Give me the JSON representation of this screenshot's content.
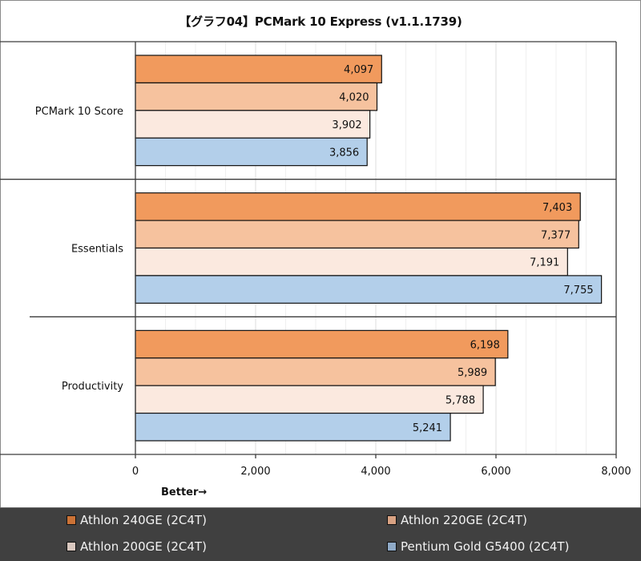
{
  "chart_data": {
    "type": "bar",
    "orientation": "horizontal",
    "title": "【グラフ04】PCMark 10 Express (v1.1.1739)",
    "categories": [
      "PCMark 10 Score",
      "Essentials",
      "Productivity"
    ],
    "series": [
      {
        "name": "Athlon 240GE (2C4T)",
        "values": [
          4097,
          7403,
          6198
        ],
        "value_labels": [
          "4,097",
          "7,403",
          "6,198"
        ],
        "color": "#F19A5D",
        "legend_color": "#CB7236"
      },
      {
        "name": "Athlon 220GE (2C4T)",
        "values": [
          4020,
          7377,
          5989
        ],
        "value_labels": [
          "4,020",
          "7,377",
          "5,989"
        ],
        "color": "#F6C29E",
        "legend_color": "#D8A283"
      },
      {
        "name": "Athlon 200GE (2C4T)",
        "values": [
          3902,
          7191,
          5788
        ],
        "value_labels": [
          "3,902",
          "7,191",
          "5,788"
        ],
        "color": "#FBE9DF",
        "legend_color": "#D9C8BF"
      },
      {
        "name": "Pentium Gold G5400 (2C4T)",
        "values": [
          3856,
          7755,
          5241
        ],
        "value_labels": [
          "3,856",
          "7,755",
          "5,241"
        ],
        "color": "#B3CFEA",
        "legend_color": "#8FAAC7"
      }
    ],
    "xlabel": "Better→",
    "ylabel": "",
    "xlim": [
      0,
      8000
    ],
    "x_ticks": [
      0,
      2000,
      4000,
      6000,
      8000
    ],
    "x_tick_labels": [
      "0",
      "2,000",
      "4,000",
      "6,000",
      "8,000"
    ],
    "minor_grid_step": 500,
    "grid": true,
    "legend_position": "bottom"
  }
}
